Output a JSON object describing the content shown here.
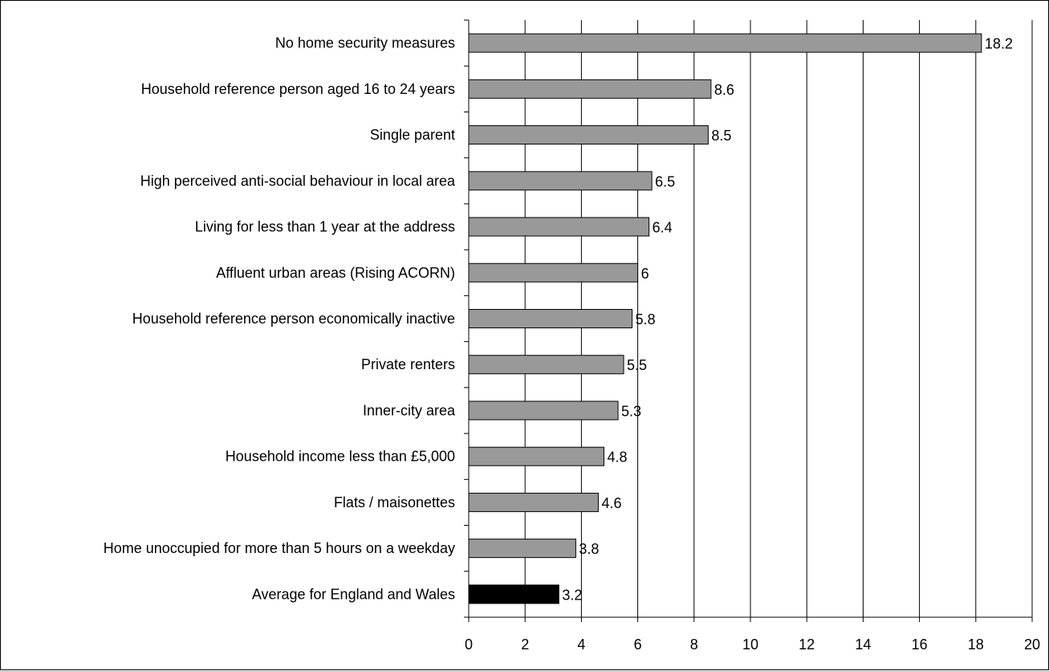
{
  "chart_data": {
    "type": "bar",
    "orientation": "horizontal",
    "categories": [
      "No home security measures",
      "Household reference person aged 16 to 24 years",
      "Single parent",
      "High perceived anti-social behaviour in local area",
      "Living for less than 1 year at the address",
      "Affluent urban areas (Rising ACORN)",
      "Household reference person economically inactive",
      "Private renters",
      "Inner-city area",
      "Household income less than £5,000",
      "Flats / maisonettes",
      "Home unoccupied for more than 5 hours on a weekday",
      "Average for England and Wales"
    ],
    "values": [
      18.2,
      8.6,
      8.5,
      6.5,
      6.4,
      6,
      5.8,
      5.5,
      5.3,
      4.8,
      4.6,
      3.8,
      3.2
    ],
    "data_labels": [
      "18.2",
      "8.6",
      "8.5",
      "6.5",
      "6.4",
      "6",
      "5.8",
      "5.5",
      "5.3",
      "4.8",
      "4.6",
      "3.8",
      "3.2"
    ],
    "bar_colors": [
      "#999999",
      "#999999",
      "#999999",
      "#999999",
      "#999999",
      "#999999",
      "#999999",
      "#999999",
      "#999999",
      "#999999",
      "#999999",
      "#999999",
      "#000000"
    ],
    "xlim": [
      0,
      20
    ],
    "x_ticks": [
      "0",
      "2",
      "4",
      "6",
      "8",
      "10",
      "12",
      "14",
      "16",
      "18",
      "20"
    ],
    "grid": "vertical",
    "title": "",
    "xlabel": "",
    "ylabel": ""
  }
}
